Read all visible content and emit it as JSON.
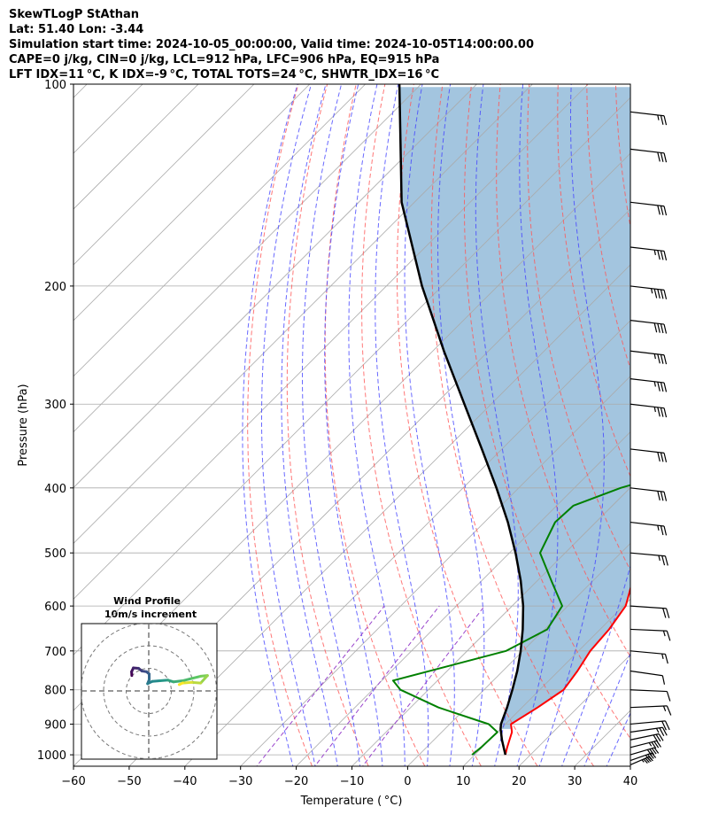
{
  "header": {
    "lines": [
      "SkewTLogP StAthan",
      "Lat: 51.40   Lon: -3.44",
      "Simulation start time: 2024-10-05_00:00:00, Valid time: 2024-10-05T14:00:00.00",
      "CAPE=0 j/kg, CIN=0 j/kg, LCL=912 hPa, LFC=906 hPa, EQ=915 hPa",
      "LFT IDX=11 °C, K IDX=-9 °C, TOTAL TOTS=24 °C, SHWTR_IDX=16 °C"
    ]
  },
  "chart_data": {
    "type": "line",
    "subtype": "skew-t log-p diagram",
    "xlabel": "Temperature ( °C)",
    "ylabel": "Pressure (hPa)",
    "xlim": [
      -60,
      40
    ],
    "ylim": [
      1040,
      100
    ],
    "y_scale": "log",
    "x_ticks": [
      "−60",
      "−50",
      "−40",
      "−30",
      "−20",
      "−10",
      "0",
      "10",
      "20",
      "30",
      "40"
    ],
    "y_ticks": [
      "100",
      "200",
      "300",
      "400",
      "500",
      "600",
      "700",
      "800",
      "900",
      "1000"
    ],
    "grid": true,
    "colors": {
      "temperature": "#ff0000",
      "dewpoint": "#008000",
      "parcel": "#000000",
      "cape_fill": "#a3c5df",
      "dry_adiabats": "#ff5555",
      "moist_adiabats": "#4444ff",
      "mixing_ratio": "#9944cc",
      "isotherms": "#aaaaaa"
    },
    "series": [
      {
        "kind": "temperature",
        "points": [
          [
            15.5,
            1000
          ],
          [
            14.5,
            975
          ],
          [
            12.6,
            925
          ],
          [
            11.0,
            900
          ],
          [
            12.8,
            850
          ],
          [
            14.3,
            800
          ],
          [
            13.4,
            750
          ],
          [
            12.1,
            700
          ],
          [
            11.6,
            650
          ],
          [
            10.4,
            600
          ],
          [
            7.1,
            550
          ],
          [
            3.2,
            500
          ],
          [
            -1.1,
            450
          ],
          [
            -5.3,
            400
          ],
          [
            -8.9,
            350
          ],
          [
            -13.5,
            300
          ],
          [
            -17.1,
            270
          ],
          [
            -20.9,
            250
          ],
          [
            -24.0,
            225
          ],
          [
            -26.3,
            200
          ],
          [
            -29.0,
            185
          ],
          [
            -32.0,
            165
          ],
          [
            -32.0,
            155
          ],
          [
            -31.5,
            140
          ],
          [
            -31.8,
            125
          ],
          [
            -30.5,
            112
          ],
          [
            -29.6,
            100
          ]
        ]
      },
      {
        "kind": "dewpoint",
        "points": [
          [
            9.5,
            1000
          ],
          [
            9.8,
            975
          ],
          [
            10.0,
            925
          ],
          [
            7.0,
            900
          ],
          [
            -5.0,
            850
          ],
          [
            -15.0,
            800
          ],
          [
            -18.0,
            775
          ],
          [
            -3.0,
            700
          ],
          [
            0.5,
            650
          ],
          [
            -1.0,
            600
          ],
          [
            -7.5,
            550
          ],
          [
            -14.5,
            500
          ],
          [
            -17.3,
            450
          ],
          [
            -17.0,
            425
          ],
          [
            -11.7,
            400
          ],
          [
            -3.4,
            375
          ],
          [
            -5.9,
            350
          ],
          [
            -7.9,
            325
          ],
          [
            -11.3,
            300
          ],
          [
            -14.5,
            275
          ],
          [
            -17.0,
            260
          ],
          [
            -20.7,
            235
          ],
          [
            -22.3,
            210
          ],
          [
            -23.8,
            195
          ],
          [
            -25.6,
            175
          ],
          [
            -27.5,
            155
          ],
          [
            -29.7,
            140
          ],
          [
            -31.9,
            130
          ],
          [
            -29.5,
            120
          ],
          [
            -25.7,
            110
          ],
          [
            -22.9,
            100
          ]
        ]
      },
      {
        "kind": "parcel",
        "points": [
          [
            15.5,
            1000
          ],
          [
            12.2,
            950
          ],
          [
            10.0,
            915
          ],
          [
            9.2,
            900
          ],
          [
            7.3,
            850
          ],
          [
            5.1,
            800
          ],
          [
            2.6,
            750
          ],
          [
            -0.4,
            700
          ],
          [
            -3.9,
            650
          ],
          [
            -8.0,
            600
          ],
          [
            -13.0,
            550
          ],
          [
            -18.9,
            500
          ],
          [
            -25.8,
            450
          ],
          [
            -34.0,
            400
          ],
          [
            -43.6,
            350
          ],
          [
            -54.8,
            300
          ],
          [
            -68.0,
            250
          ],
          [
            -83.6,
            200
          ],
          [
            -102.3,
            150
          ],
          [
            -123.9,
            100
          ]
        ]
      }
    ],
    "wind_barbs": {
      "units": "kt",
      "levels": [
        {
          "p": 1035,
          "speed": 45,
          "dir": 210
        },
        {
          "p": 1020,
          "speed": 40,
          "dir": 215
        },
        {
          "p": 1000,
          "speed": 40,
          "dir": 220
        },
        {
          "p": 975,
          "speed": 35,
          "dir": 225
        },
        {
          "p": 950,
          "speed": 30,
          "dir": 230
        },
        {
          "p": 925,
          "speed": 25,
          "dir": 240
        },
        {
          "p": 900,
          "speed": 20,
          "dir": 250
        },
        {
          "p": 850,
          "speed": 15,
          "dir": 260
        },
        {
          "p": 800,
          "speed": 10,
          "dir": 280
        },
        {
          "p": 750,
          "speed": 10,
          "dir": 300
        },
        {
          "p": 700,
          "speed": 15,
          "dir": 290
        },
        {
          "p": 650,
          "speed": 15,
          "dir": 280
        },
        {
          "p": 600,
          "speed": 20,
          "dir": 285
        },
        {
          "p": 500,
          "speed": 25,
          "dir": 290
        },
        {
          "p": 450,
          "speed": 25,
          "dir": 295
        },
        {
          "p": 400,
          "speed": 30,
          "dir": 295
        },
        {
          "p": 350,
          "speed": 30,
          "dir": 295
        },
        {
          "p": 300,
          "speed": 35,
          "dir": 295
        },
        {
          "p": 275,
          "speed": 35,
          "dir": 295
        },
        {
          "p": 250,
          "speed": 35,
          "dir": 295
        },
        {
          "p": 225,
          "speed": 40,
          "dir": 295
        },
        {
          "p": 200,
          "speed": 45,
          "dir": 295
        },
        {
          "p": 175,
          "speed": 35,
          "dir": 295
        },
        {
          "p": 150,
          "speed": 30,
          "dir": 295
        },
        {
          "p": 125,
          "speed": 30,
          "dir": 295
        },
        {
          "p": 110,
          "speed": 25,
          "dir": 295
        }
      ]
    },
    "hodograph": {
      "title": "Wind Profile",
      "subtitle": "10m/s increment",
      "ring_step": 10,
      "ring_count": 3,
      "colormap": [
        "#440154",
        "#3b528b",
        "#21918c",
        "#5ec962",
        "#fde725"
      ],
      "points": [
        [
          -7.5,
          6.8
        ],
        [
          -7.6,
          8.5
        ],
        [
          -6.8,
          10.2
        ],
        [
          -4.5,
          10.0
        ],
        [
          -3.0,
          8.8
        ],
        [
          -1.0,
          8.5
        ],
        [
          0.2,
          7.5
        ],
        [
          0.2,
          5.0
        ],
        [
          -0.5,
          3.2
        ],
        [
          1.5,
          4.2
        ],
        [
          5.0,
          4.5
        ],
        [
          8.5,
          4.8
        ],
        [
          11.0,
          4.0
        ],
        [
          15.0,
          4.5
        ],
        [
          19.0,
          5.5
        ],
        [
          23.0,
          6.5
        ],
        [
          26.0,
          6.8
        ],
        [
          23.0,
          3.5
        ],
        [
          19.0,
          3.8
        ],
        [
          15.0,
          3.5
        ],
        [
          13.5,
          2.8
        ]
      ]
    }
  }
}
